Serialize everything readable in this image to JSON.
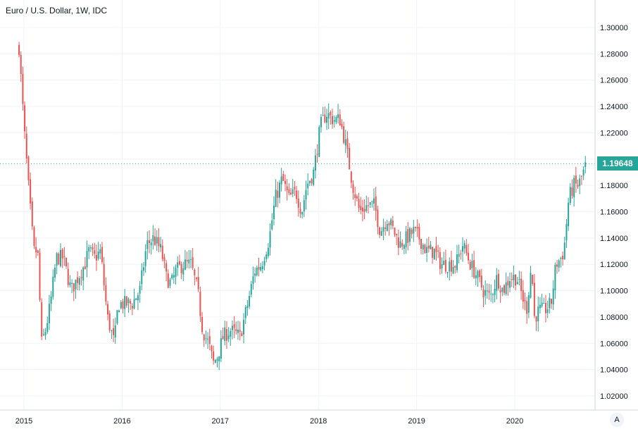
{
  "header": {
    "title": "Euro / U.S. Dollar, 1W, IDC"
  },
  "price_scale": {
    "auto_label": "A"
  },
  "last_price": {
    "label": "1.19648",
    "value": 1.19648
  },
  "colors": {
    "up": "#26a69a",
    "down": "#ef5350",
    "grid": "#f0f3fa",
    "axis": "#d1d4dc",
    "text": "#131722"
  },
  "chart_data": {
    "type": "candlestick",
    "title": "Euro / U.S. Dollar, 1W, IDC",
    "xlabel": "",
    "ylabel": "",
    "ylim": [
      1.01,
      1.31
    ],
    "xlim": [
      2014.95,
      2020.78
    ],
    "grid": true,
    "y_ticks": [
      "1.02000",
      "1.04000",
      "1.06000",
      "1.08000",
      "1.10000",
      "1.12000",
      "1.14000",
      "1.16000",
      "1.18000",
      "1.20000",
      "1.22000",
      "1.24000",
      "1.26000",
      "1.28000",
      "1.30000"
    ],
    "x_ticks": [
      "2015",
      "2016",
      "2017",
      "2018",
      "2019",
      "2020"
    ],
    "close_path": [
      [
        2014.95,
        1.285
      ],
      [
        2015.0,
        1.225
      ],
      [
        2015.05,
        1.175
      ],
      [
        2015.1,
        1.13
      ],
      [
        2015.14,
        1.13
      ],
      [
        2015.18,
        1.06
      ],
      [
        2015.22,
        1.07
      ],
      [
        2015.27,
        1.09
      ],
      [
        2015.33,
        1.125
      ],
      [
        2015.4,
        1.125
      ],
      [
        2015.48,
        1.1
      ],
      [
        2015.55,
        1.11
      ],
      [
        2015.62,
        1.12
      ],
      [
        2015.66,
        1.13
      ],
      [
        2015.72,
        1.125
      ],
      [
        2015.78,
        1.13
      ],
      [
        2015.85,
        1.08
      ],
      [
        2015.92,
        1.06
      ],
      [
        2015.96,
        1.09
      ],
      [
        2016.03,
        1.09
      ],
      [
        2016.1,
        1.09
      ],
      [
        2016.18,
        1.1
      ],
      [
        2016.25,
        1.135
      ],
      [
        2016.32,
        1.14
      ],
      [
        2016.4,
        1.13
      ],
      [
        2016.45,
        1.11
      ],
      [
        2016.5,
        1.105
      ],
      [
        2016.55,
        1.115
      ],
      [
        2016.62,
        1.12
      ],
      [
        2016.7,
        1.12
      ],
      [
        2016.77,
        1.1
      ],
      [
        2016.82,
        1.07
      ],
      [
        2016.88,
        1.06
      ],
      [
        2016.93,
        1.045
      ],
      [
        2016.97,
        1.05
      ],
      [
        2017.03,
        1.065
      ],
      [
        2017.1,
        1.07
      ],
      [
        2017.2,
        1.065
      ],
      [
        2017.28,
        1.09
      ],
      [
        2017.35,
        1.115
      ],
      [
        2017.42,
        1.12
      ],
      [
        2017.5,
        1.14
      ],
      [
        2017.56,
        1.17
      ],
      [
        2017.63,
        1.185
      ],
      [
        2017.7,
        1.17
      ],
      [
        2017.77,
        1.175
      ],
      [
        2017.83,
        1.16
      ],
      [
        2017.88,
        1.18
      ],
      [
        2017.95,
        1.19
      ],
      [
        2018.02,
        1.225
      ],
      [
        2018.08,
        1.235
      ],
      [
        2018.15,
        1.23
      ],
      [
        2018.22,
        1.23
      ],
      [
        2018.28,
        1.21
      ],
      [
        2018.35,
        1.18
      ],
      [
        2018.42,
        1.16
      ],
      [
        2018.5,
        1.165
      ],
      [
        2018.57,
        1.165
      ],
      [
        2018.63,
        1.145
      ],
      [
        2018.7,
        1.155
      ],
      [
        2018.77,
        1.145
      ],
      [
        2018.83,
        1.135
      ],
      [
        2018.9,
        1.14
      ],
      [
        2018.97,
        1.145
      ],
      [
        2019.03,
        1.14
      ],
      [
        2019.1,
        1.13
      ],
      [
        2019.18,
        1.13
      ],
      [
        2019.25,
        1.12
      ],
      [
        2019.32,
        1.12
      ],
      [
        2019.4,
        1.12
      ],
      [
        2019.47,
        1.135
      ],
      [
        2019.55,
        1.12
      ],
      [
        2019.62,
        1.11
      ],
      [
        2019.68,
        1.1
      ],
      [
        2019.75,
        1.095
      ],
      [
        2019.82,
        1.11
      ],
      [
        2019.88,
        1.1
      ],
      [
        2019.95,
        1.11
      ],
      [
        2020.02,
        1.11
      ],
      [
        2020.08,
        1.095
      ],
      [
        2020.12,
        1.085
      ],
      [
        2020.17,
        1.12
      ],
      [
        2020.2,
        1.08
      ],
      [
        2020.25,
        1.085
      ],
      [
        2020.3,
        1.085
      ],
      [
        2020.37,
        1.09
      ],
      [
        2020.42,
        1.12
      ],
      [
        2020.47,
        1.125
      ],
      [
        2020.5,
        1.13
      ],
      [
        2020.55,
        1.17
      ],
      [
        2020.6,
        1.18
      ],
      [
        2020.65,
        1.18
      ],
      [
        2020.7,
        1.19
      ],
      [
        2020.73,
        1.196
      ]
    ]
  }
}
